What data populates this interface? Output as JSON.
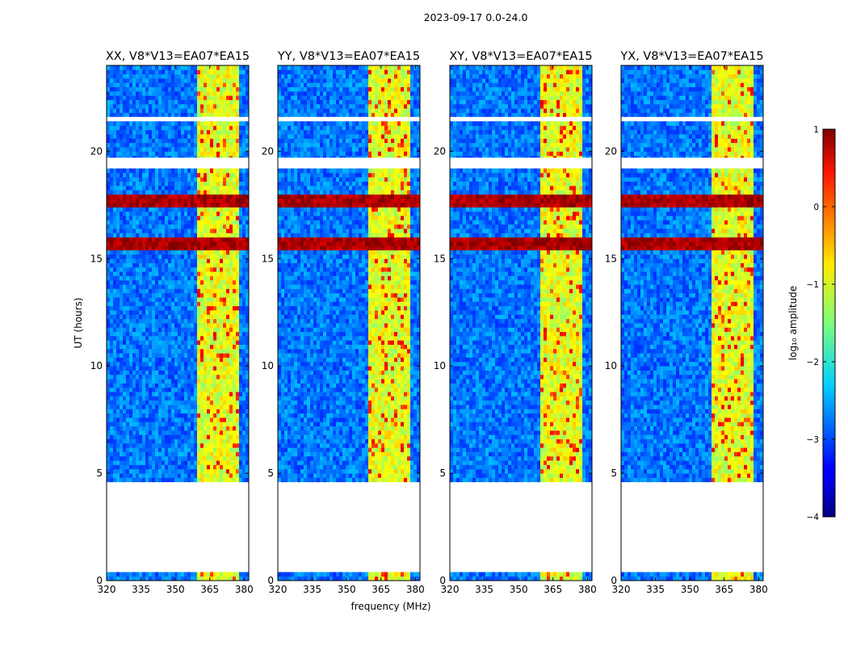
{
  "figure": {
    "suptitle": "2023-09-17 0.0-24.0",
    "xlabel": "frequency (MHz)",
    "ylabel": "UT (hours)"
  },
  "colorbar": {
    "label": "log₁₀ amplitude",
    "range": [
      -4,
      1
    ],
    "ticks": [
      -4,
      -3,
      -2,
      -1,
      0,
      1
    ],
    "tick_labels": [
      "−4",
      "−3",
      "−2",
      "−1",
      "0",
      "1"
    ],
    "colormap": "jet"
  },
  "chart_data": {
    "type": "heatmap",
    "title": "2023-09-17 0.0-24.0",
    "xlabel": "frequency (MHz)",
    "ylabel": "UT (hours)",
    "xlim": [
      320,
      382
    ],
    "ylim": [
      0,
      24
    ],
    "xticks": [
      320,
      335,
      350,
      365,
      380
    ],
    "yticks": [
      0,
      5,
      10,
      15,
      20
    ],
    "color_scale": "log10 amplitude",
    "zlim": [
      -4,
      1
    ],
    "panels": [
      {
        "title": "XX, V8*V13=EA07*EA15",
        "polarization": "XX"
      },
      {
        "title": "YY, V8*V13=EA07*EA15",
        "polarization": "YY"
      },
      {
        "title": "XY, V8*V13=EA07*EA15",
        "polarization": "XY"
      },
      {
        "title": "YX, V8*V13=EA07*EA15",
        "polarization": "YX"
      }
    ],
    "flagged_time_ranges_hours": [
      [
        0.4,
        4.5
      ],
      [
        19.3,
        19.7
      ],
      [
        21.4,
        21.6
      ]
    ],
    "rfi_band_mhz": [
      359.5,
      377.5
    ],
    "approx_levels": {
      "background": -2.8,
      "rfi_band": -1.0,
      "rfi_peaks": 0.2,
      "storm_rows_hours": [
        15.5,
        15.8,
        17.6,
        17.8
      ],
      "storm_level": 0.8
    }
  }
}
